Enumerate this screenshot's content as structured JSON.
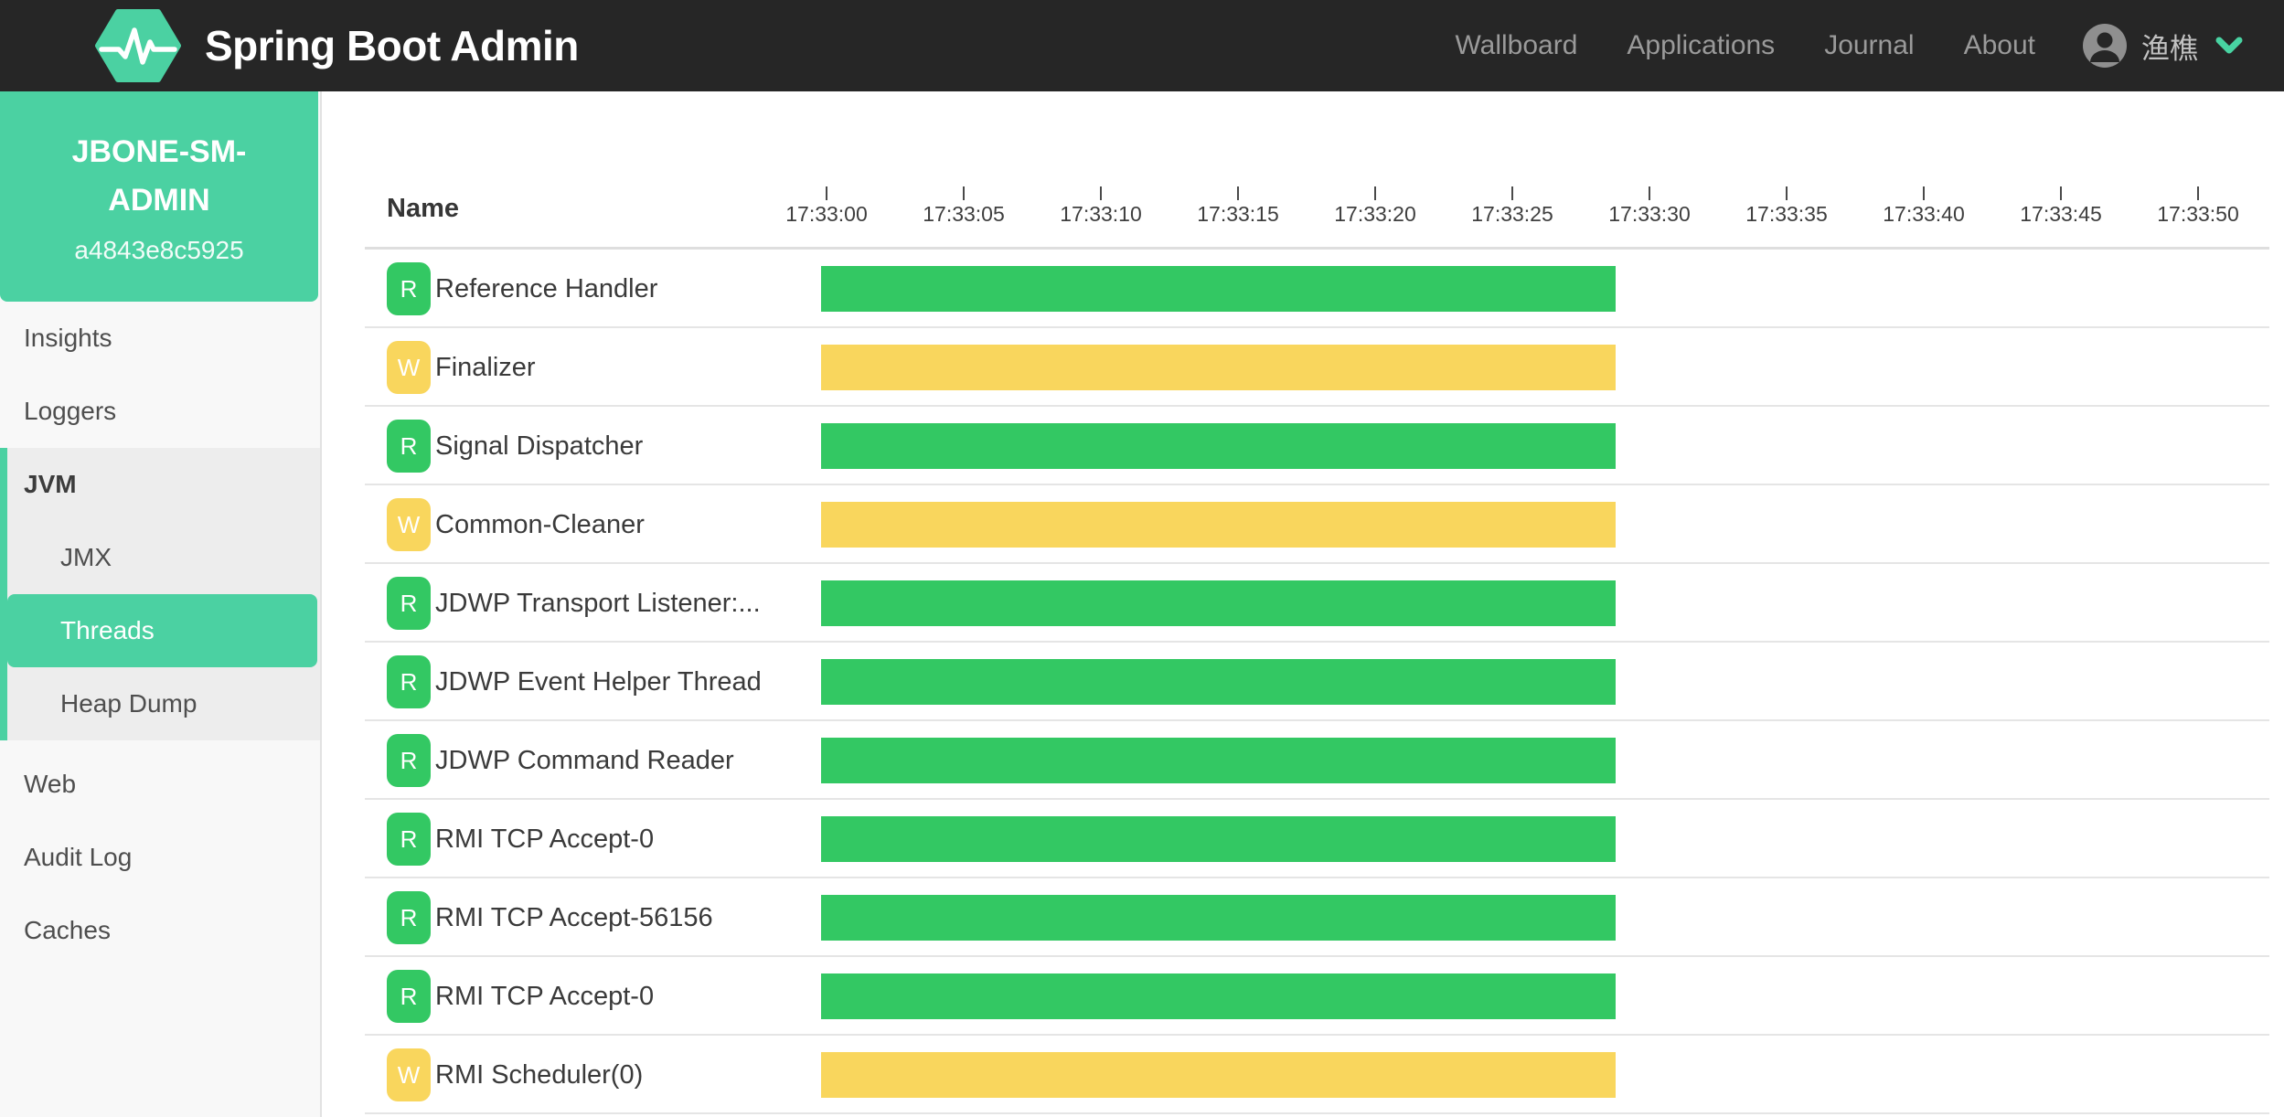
{
  "colors": {
    "navbar_bg": "#262626",
    "accent": "#4bd1a2",
    "runnable_green": "#33c863",
    "waiting_yellow": "#f9d65d",
    "sidebar_bg": "#f8f8f8",
    "group_bg": "#ededed",
    "separator": "#e5e5e5"
  },
  "navbar": {
    "brand": "Spring Boot Admin",
    "links": [
      {
        "label": "Wallboard",
        "slug": "wallboard"
      },
      {
        "label": "Applications",
        "slug": "applications"
      },
      {
        "label": "Journal",
        "slug": "journal"
      },
      {
        "label": "About",
        "slug": "about"
      }
    ],
    "user": {
      "name": "渔樵"
    }
  },
  "sidebar": {
    "instance": {
      "name": "JBONE-SM-ADMIN",
      "id": "a4843e8c5925"
    },
    "items": [
      {
        "label": "Insights",
        "slug": "insights",
        "indent": 0,
        "section": false,
        "selected": false,
        "in_group": false,
        "gap_top": false
      },
      {
        "label": "Loggers",
        "slug": "loggers",
        "indent": 0,
        "section": false,
        "selected": false,
        "in_group": false,
        "gap_top": false
      },
      {
        "label": "JVM",
        "slug": "jvm",
        "indent": 0,
        "section": true,
        "selected": false,
        "in_group": true,
        "gap_top": false
      },
      {
        "label": "JMX",
        "slug": "jmx",
        "indent": 1,
        "section": false,
        "selected": false,
        "in_group": true,
        "gap_top": false
      },
      {
        "label": "Threads",
        "slug": "threads",
        "indent": 1,
        "section": false,
        "selected": true,
        "in_group": true,
        "gap_top": false
      },
      {
        "label": "Heap Dump",
        "slug": "heap-dump",
        "indent": 1,
        "section": false,
        "selected": false,
        "in_group": true,
        "gap_top": false
      },
      {
        "label": "Web",
        "slug": "web",
        "indent": 0,
        "section": false,
        "selected": false,
        "in_group": false,
        "gap_top": true
      },
      {
        "label": "Audit Log",
        "slug": "audit-log",
        "indent": 0,
        "section": false,
        "selected": false,
        "in_group": false,
        "gap_top": false
      },
      {
        "label": "Caches",
        "slug": "caches",
        "indent": 0,
        "section": false,
        "selected": false,
        "in_group": false,
        "gap_top": false
      }
    ]
  },
  "content": {
    "name_header": "Name",
    "timeline": {
      "ticks": [
        "17:33:00",
        "17:33:05",
        "17:33:10",
        "17:33:15",
        "17:33:20",
        "17:33:25",
        "17:33:30",
        "17:33:35",
        "17:33:40",
        "17:33:45",
        "17:33:50"
      ],
      "first_tick_partially_clipped": true,
      "bar_span": {
        "start": "17:33:00 (clipped at viewport left edge)",
        "end": "~17:33:29"
      }
    },
    "threads": [
      {
        "name": "Reference Handler",
        "badge": "R",
        "state": "runnable"
      },
      {
        "name": "Finalizer",
        "badge": "W",
        "state": "waiting"
      },
      {
        "name": "Signal Dispatcher",
        "badge": "R",
        "state": "runnable"
      },
      {
        "name": "Common-Cleaner",
        "badge": "W",
        "state": "waiting"
      },
      {
        "name": "JDWP Transport Listener:...",
        "badge": "R",
        "state": "runnable"
      },
      {
        "name": "JDWP Event Helper Thread",
        "badge": "R",
        "state": "runnable"
      },
      {
        "name": "JDWP Command Reader",
        "badge": "R",
        "state": "runnable"
      },
      {
        "name": "RMI TCP Accept-0",
        "badge": "R",
        "state": "runnable"
      },
      {
        "name": "RMI TCP Accept-56156",
        "badge": "R",
        "state": "runnable"
      },
      {
        "name": "RMI TCP Accept-0",
        "badge": "R",
        "state": "runnable"
      },
      {
        "name": "RMI Scheduler(0)",
        "badge": "W",
        "state": "waiting"
      }
    ]
  }
}
